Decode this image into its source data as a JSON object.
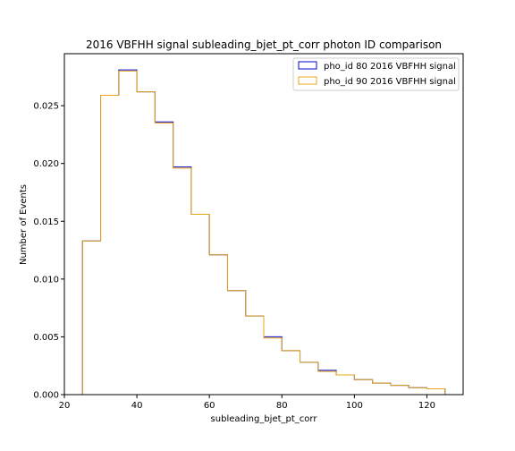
{
  "chart_data": {
    "type": "histogram-step",
    "title": "2016 VBFHH signal subleading_bjet_pt_corr photon ID comparison",
    "xlabel": "subleading_bjet_pt_corr",
    "ylabel": "Number of Events",
    "xlim": [
      20,
      130
    ],
    "ylim": [
      0,
      0.0295
    ],
    "xticks": [
      "20",
      "40",
      "60",
      "80",
      "100",
      "120"
    ],
    "yticks": [
      "0.000",
      "0.005",
      "0.010",
      "0.015",
      "0.020",
      "0.025"
    ],
    "ytick_values": [
      0,
      0.005,
      0.01,
      0.015,
      0.02,
      0.025
    ],
    "xtick_values": [
      20,
      40,
      60,
      80,
      100,
      120
    ],
    "bin_edges": [
      25,
      30,
      35,
      40,
      45,
      50,
      55,
      60,
      65,
      70,
      75,
      80,
      85,
      90,
      95,
      100,
      105,
      110,
      115,
      120,
      125
    ],
    "legend_position": "top-right",
    "series": [
      {
        "name": "pho_id 80 2016 VBFHH signal",
        "color": "#0000cc",
        "values": [
          0.0133,
          0.0259,
          0.0281,
          0.0262,
          0.0236,
          0.0197,
          0.0156,
          0.0121,
          0.009,
          0.0068,
          0.005,
          0.0038,
          0.0028,
          0.0021,
          0.0017,
          0.0013,
          0.001,
          0.0008,
          0.0006,
          0.0005
        ]
      },
      {
        "name": "pho_id 90 2016 VBFHH signal",
        "color": "#e6a817",
        "values": [
          0.0133,
          0.0259,
          0.028,
          0.0262,
          0.0235,
          0.0196,
          0.0156,
          0.0121,
          0.009,
          0.0068,
          0.0049,
          0.0038,
          0.0028,
          0.002,
          0.0017,
          0.0013,
          0.001,
          0.0008,
          0.0006,
          0.0005
        ]
      }
    ]
  }
}
